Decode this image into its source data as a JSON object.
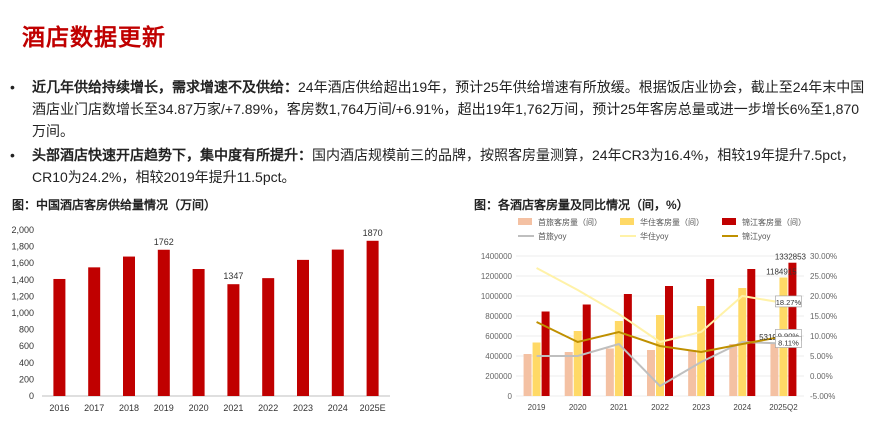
{
  "header": {
    "title": "酒店数据更新"
  },
  "bullets": [
    {
      "dot": "•",
      "bold": "近几年供给持续增长，需求增速不及供给：",
      "text": "24年酒店供给超出19年，预计25年供给增速有所放缓。根据饭店业协会，截止至24年末中国酒店业门店数增长至34.87万家/+7.89%，客房数1,764万间/+6.91%，超出19年1,762万间，预计25年客房总量或进一步增长6%至1,870万间。"
    },
    {
      "dot": "•",
      "bold": "头部酒店快速开店趋势下，集中度有所提升：",
      "text": "国内酒店规模前三的品牌，按照客房量测算，24年CR3为16.4%，相较19年提升7.5pct，CR10为24.2%，相较2019年提升11.5pct。"
    }
  ],
  "figures": {
    "fig1_title": "图：中国酒店客房供给量情况（万间）",
    "fig2_title": "图：各酒店客房量及同比情况（间，%）"
  },
  "colors": {
    "brand_red": "#c00000",
    "shouqi_bar": "#f4c1a3",
    "huazhu_bar": "#ffd966",
    "jinjiang_bar": "#c00000",
    "shouqi_line": "#bfbfbf",
    "huazhu_line": "#fff2a8",
    "jinjiang_line": "#bf9000"
  },
  "chart_data": [
    {
      "type": "bar",
      "title": "图：中国酒店客房供给量情况（万间）",
      "categories": [
        "2016",
        "2017",
        "2018",
        "2019",
        "2020",
        "2021",
        "2022",
        "2023",
        "2024",
        "2025E"
      ],
      "values": [
        1410,
        1550,
        1680,
        1762,
        1530,
        1347,
        1420,
        1640,
        1764,
        1870
      ],
      "data_labels": {
        "2019": "1762",
        "2021": "1347",
        "2025E": "1870"
      },
      "yticks": [
        "0",
        "200",
        "400",
        "600",
        "800",
        "1,000",
        "1,200",
        "1,400",
        "1,600",
        "1,800",
        "2,000"
      ],
      "ylim": [
        0,
        2000
      ],
      "grid": false
    },
    {
      "type": "bar",
      "title": "图：各酒店客房量及同比情况（间，%）",
      "categories": [
        "2019",
        "2020",
        "2021",
        "2022",
        "2023",
        "2024",
        "2025Q2"
      ],
      "yticks_left": [
        "0",
        "200000",
        "400000",
        "600000",
        "800000",
        "1000000",
        "1200000",
        "1400000"
      ],
      "yticks_right": [
        "-5.00%",
        "0.00%",
        "5.00%",
        "10.00%",
        "15.00%",
        "20.00%",
        "25.00%",
        "30.00%"
      ],
      "ylim_left": [
        0,
        1400000
      ],
      "ylim_right": [
        -5,
        30
      ],
      "legend_position": "top",
      "series": [
        {
          "name": "首旅客房量（间）",
          "kind": "bar",
          "axis": "left",
          "values": [
            420000,
            440000,
            475000,
            460000,
            460000,
            520000,
            531965
          ]
        },
        {
          "name": "华住客房量（间）",
          "kind": "bar",
          "axis": "left",
          "values": [
            535000,
            650000,
            750000,
            810000,
            900000,
            1080000,
            1184915
          ]
        },
        {
          "name": "锦江客房量（间）",
          "kind": "bar",
          "axis": "left",
          "values": [
            845000,
            915000,
            1020000,
            1100000,
            1170000,
            1270000,
            1332853
          ]
        },
        {
          "name": "首旅yoy",
          "kind": "line",
          "axis": "right",
          "values": [
            5.0,
            5.0,
            8.0,
            -2.5,
            3.5,
            8.5,
            8.11
          ]
        },
        {
          "name": "华住yoy",
          "kind": "line",
          "axis": "right",
          "values": [
            27.0,
            21.5,
            15.5,
            8.5,
            11.0,
            20.0,
            18.27
          ]
        },
        {
          "name": "锦江yoy",
          "kind": "line",
          "axis": "right",
          "values": [
            13.5,
            8.5,
            11.0,
            7.5,
            6.0,
            8.0,
            9.9
          ]
        }
      ],
      "data_labels": [
        {
          "series": "锦江客房量（间）",
          "category": "2025Q2",
          "text": "1332853"
        },
        {
          "series": "华住客房量（间）",
          "category": "2025Q2",
          "text": "1184915"
        },
        {
          "series": "首旅客房量（间）",
          "category": "2025Q2",
          "text": "531965"
        },
        {
          "series": "华住yoy",
          "category": "2025Q2",
          "text": "18.27%"
        },
        {
          "series": "锦江yoy",
          "category": "2025Q2",
          "text": "9.90%"
        },
        {
          "series": "首旅yoy",
          "category": "2025Q2",
          "text": "8.11%"
        }
      ]
    }
  ]
}
